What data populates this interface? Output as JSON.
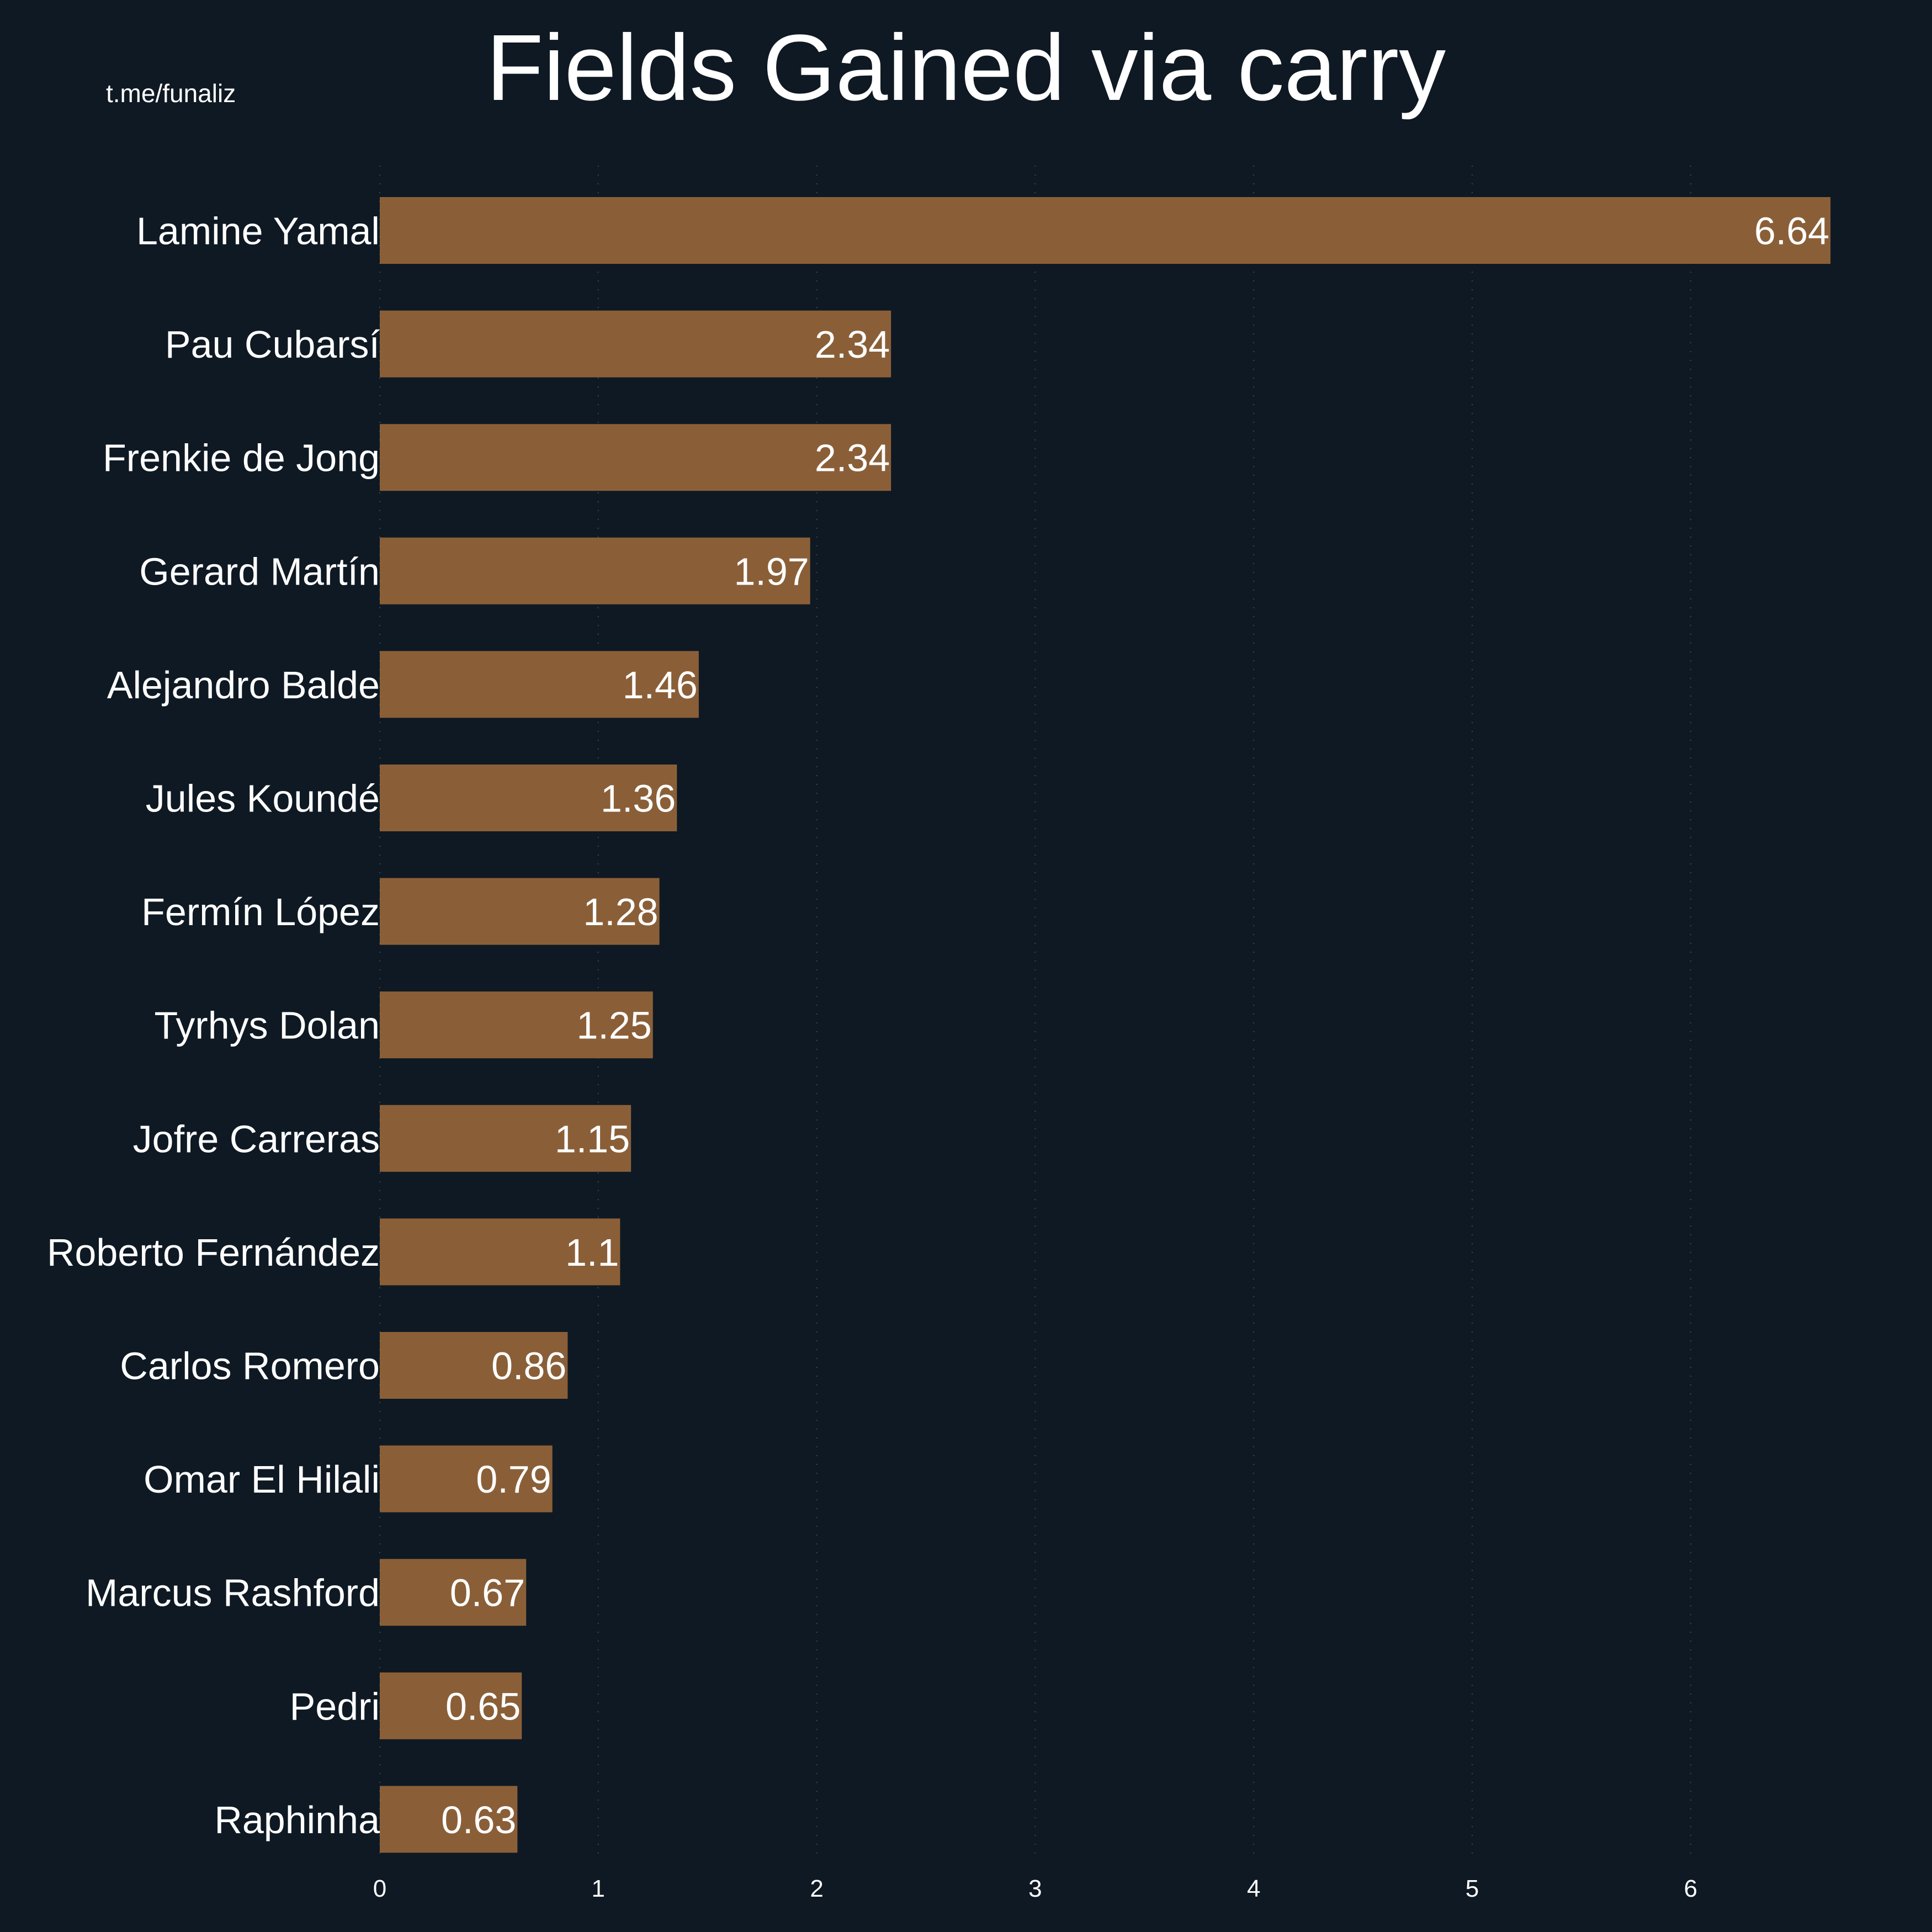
{
  "watermark": "t.me/funaliz",
  "colors": {
    "background": "#0f1923",
    "bar": "#8a5f38",
    "text": "#ffffff",
    "grid": "#3a4654"
  },
  "chart_data": {
    "type": "bar",
    "orientation": "horizontal",
    "title": "Fields Gained via carry",
    "xlabel": "",
    "ylabel": "",
    "xlim": [
      0,
      6.8
    ],
    "xticks": [
      0,
      1,
      2,
      3,
      4,
      5,
      6
    ],
    "grid": "vertical dotted at x ticks",
    "categories": [
      "Lamine Yamal",
      "Pau Cubarsí",
      "Frenkie de Jong",
      "Gerard Martín",
      "Alejandro Balde",
      "Jules Koundé",
      "Fermín López",
      "Tyrhys Dolan",
      "Jofre Carreras",
      "Roberto Fernández",
      "Carlos Romero",
      "Omar El Hilali",
      "Marcus Rashford",
      "Pedri",
      "Raphinha"
    ],
    "values": [
      6.64,
      2.34,
      2.34,
      1.97,
      1.46,
      1.36,
      1.28,
      1.25,
      1.15,
      1.1,
      0.86,
      0.79,
      0.67,
      0.65,
      0.63
    ],
    "value_labels": [
      "6.64",
      "2.34",
      "2.34",
      "1.97",
      "1.46",
      "1.36",
      "1.28",
      "1.25",
      "1.15",
      "1.1",
      "0.86",
      "0.79",
      "0.67",
      "0.65",
      "0.63"
    ]
  }
}
